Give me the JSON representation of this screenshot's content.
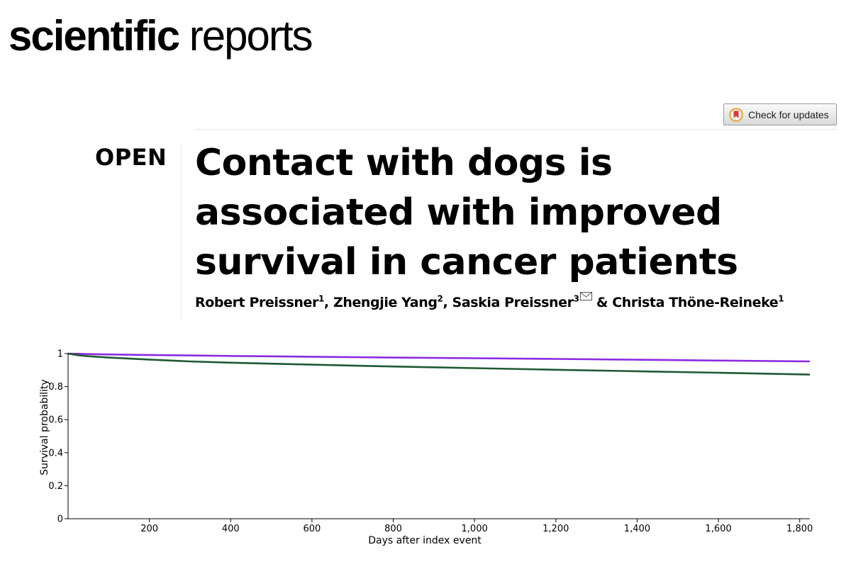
{
  "journal": {
    "name_bold": "scientific",
    "name_regular": "reports"
  },
  "check_updates": {
    "label": "Check for updates"
  },
  "article": {
    "open_label": "OPEN",
    "title": "Contact with dogs is associated with improved survival in cancer patients",
    "authors": [
      {
        "name": "Robert Preissner",
        "affiliation": "1",
        "corresponding": false,
        "sep": ", "
      },
      {
        "name": "Zhengjie Yang",
        "affiliation": "2",
        "corresponding": false,
        "sep": ", "
      },
      {
        "name": "Saskia Preissner",
        "affiliation": "3",
        "corresponding": true,
        "sep": " & "
      },
      {
        "name": "Christa Thöne-Reineke",
        "affiliation": "1",
        "corresponding": false,
        "sep": ""
      }
    ]
  },
  "colors": {
    "series_top": "#8a2be2",
    "series_bottom": "#1e5a32"
  },
  "chart_data": {
    "type": "line",
    "xlabel": "Days after index event",
    "ylabel": "Survival probability",
    "xlim": [
      0,
      1825
    ],
    "ylim": [
      0,
      1
    ],
    "x_ticks": [
      200,
      400,
      600,
      800,
      1000,
      1200,
      1400,
      1600,
      1800
    ],
    "x_tick_labels": [
      "200",
      "400",
      "600",
      "800",
      "1,000",
      "1,200",
      "1,400",
      "1,600",
      "1,800"
    ],
    "y_ticks": [
      0,
      0.2,
      0.4,
      0.6,
      0.8,
      1
    ],
    "y_tick_labels": [
      "0",
      "0.2",
      "0.4",
      "0.6",
      "0.8",
      "1"
    ],
    "grid": false,
    "series": [
      {
        "color": "#8a2be2",
        "x": [
          0,
          100,
          200,
          300,
          400,
          600,
          800,
          1000,
          1200,
          1400,
          1600,
          1825
        ],
        "y": [
          1.0,
          0.995,
          0.992,
          0.989,
          0.986,
          0.981,
          0.976,
          0.972,
          0.968,
          0.963,
          0.958,
          0.953
        ]
      },
      {
        "color": "#1e5a32",
        "x": [
          0,
          25,
          50,
          100,
          200,
          300,
          400,
          600,
          800,
          1000,
          1200,
          1400,
          1600,
          1825
        ],
        "y": [
          1.0,
          0.99,
          0.984,
          0.976,
          0.964,
          0.953,
          0.945,
          0.933,
          0.922,
          0.912,
          0.902,
          0.893,
          0.884,
          0.873
        ]
      }
    ]
  }
}
